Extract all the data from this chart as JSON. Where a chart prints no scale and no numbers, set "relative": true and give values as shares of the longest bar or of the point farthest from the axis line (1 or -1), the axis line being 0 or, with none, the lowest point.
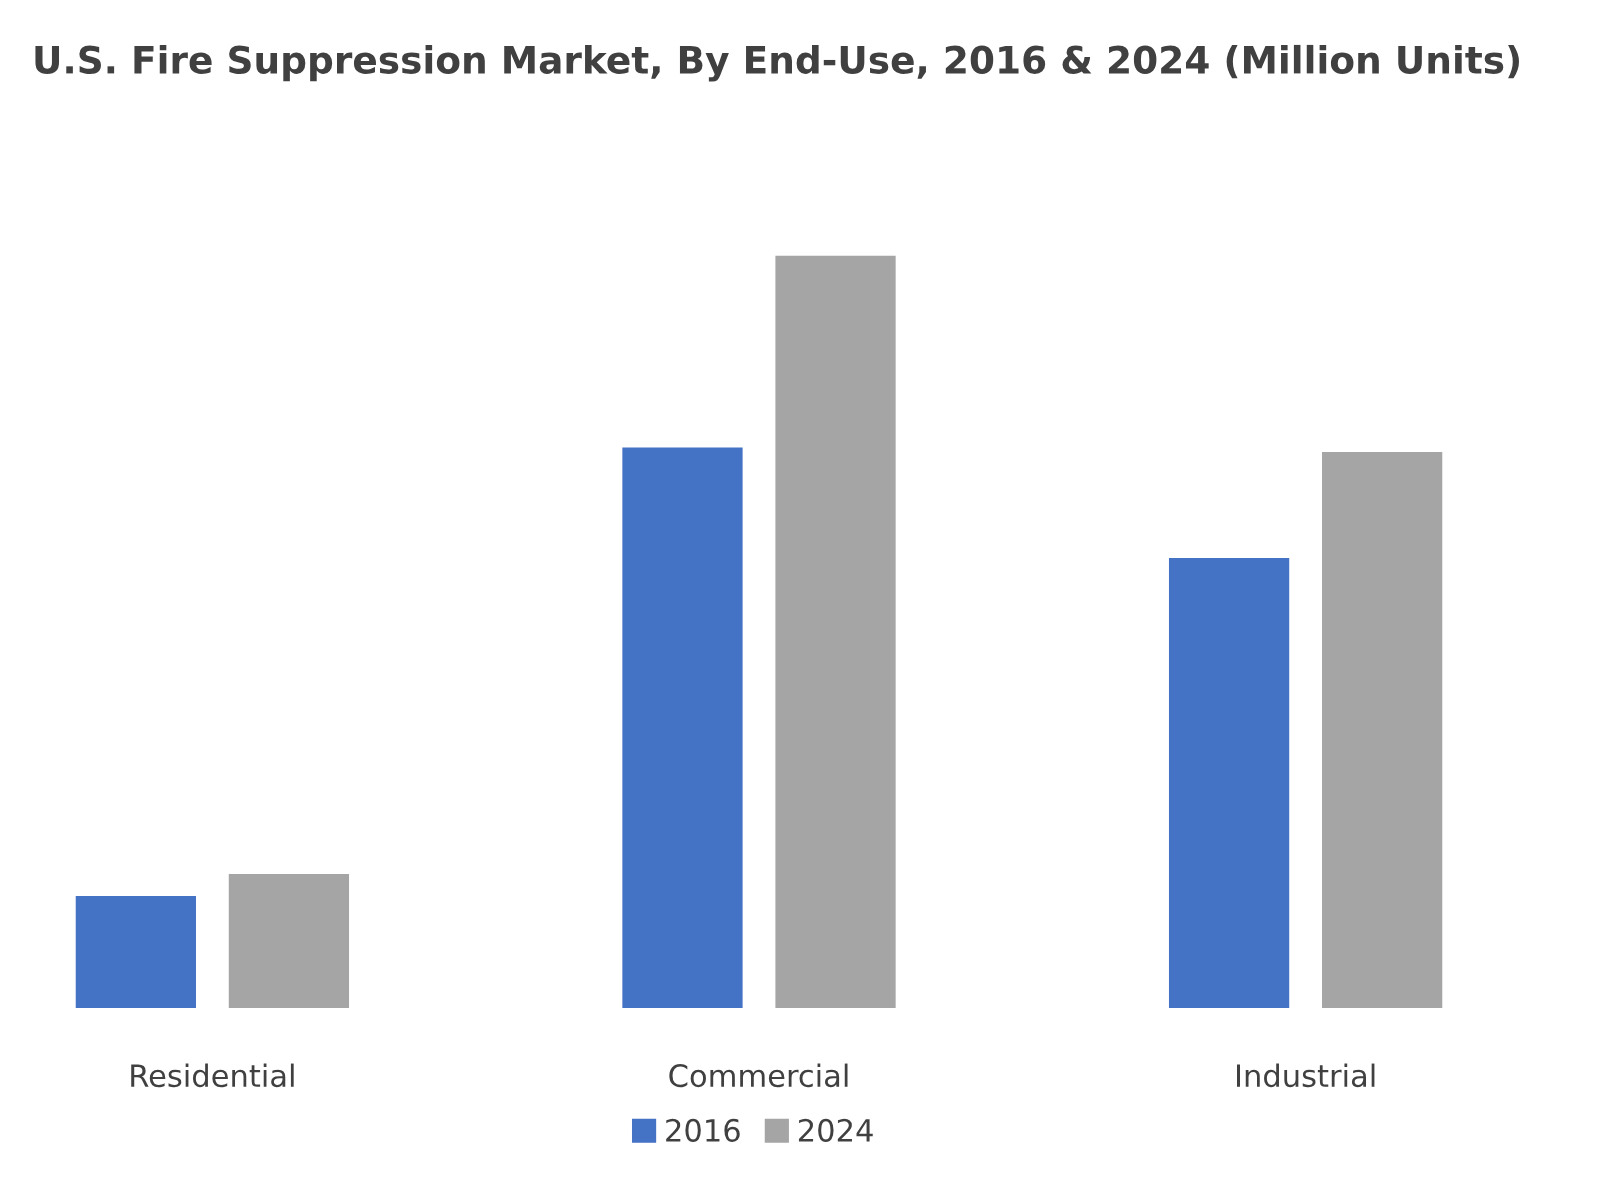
{
  "chart_data": {
    "type": "bar",
    "title": "U.S. Fire Suppression Market, By End-Use, 2016 & 2024 (Million Units)",
    "categories": [
      "Residential",
      "Commercial",
      "Industrial"
    ],
    "relative": true,
    "series": [
      {
        "name": "2016",
        "color": "#4472c4",
        "values": [
          0.149,
          0.745,
          0.598
        ]
      },
      {
        "name": "2024",
        "color": "#a5a5a5",
        "values": [
          0.178,
          1,
          0.739
        ]
      }
    ],
    "legend": "bottom",
    "grid": false
  }
}
